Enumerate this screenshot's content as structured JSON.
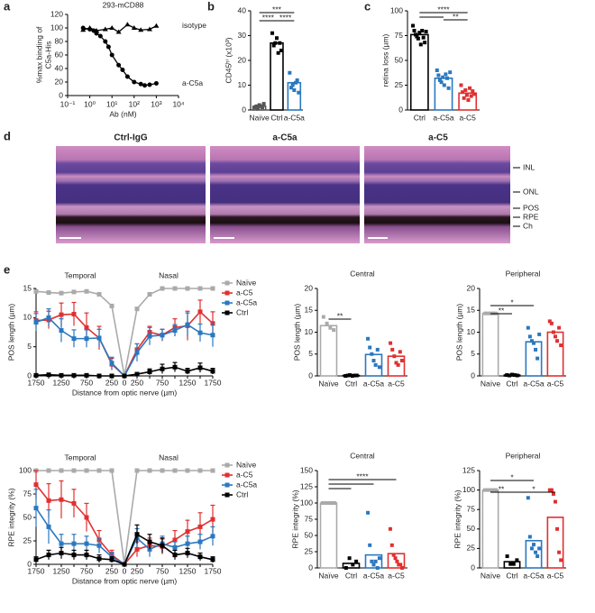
{
  "panels": [
    "a",
    "b",
    "c",
    "d",
    "e"
  ],
  "histology": {
    "titles": [
      "Ctrl-IgG",
      "a-C5a",
      "a-C5"
    ],
    "layers": [
      "INL",
      "ONL",
      "POS",
      "RPE",
      "Ch"
    ]
  },
  "chart_data": [
    {
      "type": "scatter",
      "title": "293-mCD88",
      "xlabel": "Ab (nM)",
      "ylabel": [
        "%max binding of",
        "C5a-His"
      ],
      "xscale": "log",
      "xlim": [
        0.1,
        10000
      ],
      "xticks": [
        {
          "value": 0.1,
          "label": "10⁻¹"
        },
        {
          "value": 1,
          "label": "10⁰"
        },
        {
          "value": 10,
          "label": "10¹"
        },
        {
          "value": 100,
          "label": "10²"
        },
        {
          "value": 1000,
          "label": "10³"
        },
        {
          "value": 10000,
          "label": "10⁴"
        }
      ],
      "ylim": [
        0,
        120
      ],
      "yticks": [
        0,
        20,
        40,
        60,
        80,
        100,
        120
      ],
      "series": [
        {
          "name": "isotype",
          "marker": "triangle",
          "color": "#000000",
          "x": [
            0.5,
            1,
            2,
            5,
            10,
            20,
            50,
            100,
            200,
            500,
            1000
          ],
          "values": [
            97,
            100,
            96,
            98,
            100,
            94,
            105,
            100,
            97,
            98,
            103
          ]
        },
        {
          "name": "a-C5a",
          "marker": "circle",
          "color": "#000000",
          "x": [
            0.5,
            1,
            1.5,
            2,
            3,
            5,
            7,
            10,
            20,
            30,
            50,
            100,
            200,
            300,
            500,
            1000
          ],
          "values": [
            100,
            98,
            96,
            92,
            88,
            80,
            72,
            60,
            45,
            38,
            28,
            20,
            17,
            15,
            16,
            18
          ]
        }
      ]
    },
    {
      "type": "bar",
      "ylabel": "CD45ʰⁱ (x10³)",
      "categories": [
        "Naïve",
        "Ctrl",
        "a-C5a"
      ],
      "colors": [
        "#555555",
        "#000000",
        "#2a78c0"
      ],
      "values": [
        1.5,
        27,
        11
      ],
      "points": [
        [
          1,
          1.5,
          0.5,
          2,
          1.5,
          1,
          2.5
        ],
        [
          31,
          26,
          27,
          29,
          23,
          27,
          24
        ],
        [
          15,
          9,
          10,
          8,
          11,
          12,
          7
        ]
      ],
      "ylim": [
        0,
        40
      ],
      "yticks": [
        0,
        10,
        20,
        30,
        40
      ],
      "significance": [
        {
          "from": "Naïve",
          "to": [
            "a-C5a"
          ],
          "label": "***"
        },
        {
          "from": "Naïve",
          "to": [
            "Ctrl"
          ],
          "label": "****"
        },
        {
          "from": "Ctrl",
          "to": [
            "a-C5a"
          ],
          "label": "****"
        }
      ]
    },
    {
      "type": "bar",
      "ylabel": "retina loss (µm)",
      "categories": [
        "Ctrl",
        "a-C5a",
        "a-C5"
      ],
      "colors": [
        "#000000",
        "#2a78c0",
        "#e03030"
      ],
      "values": [
        76,
        32,
        17
      ],
      "points": [
        [
          85,
          80,
          76,
          74,
          72,
          78,
          66,
          80,
          73,
          68,
          79
        ],
        [
          40,
          35,
          30,
          28,
          33,
          25,
          36,
          32,
          22,
          38
        ],
        [
          25,
          18,
          12,
          20,
          15,
          10,
          22,
          14,
          19,
          16
        ]
      ],
      "ylim": [
        0,
        100
      ],
      "yticks": [
        0,
        25,
        50,
        75,
        100
      ],
      "significance": [
        {
          "from": "Ctrl",
          "to": [
            "a-C5",
            "a-C5a"
          ],
          "label": "****"
        },
        {
          "from": "a-C5a",
          "to": [
            "a-C5"
          ],
          "label": "**"
        }
      ]
    },
    {
      "type": "line",
      "ylabel": "POS length (µm)",
      "xlabel": "Distance from optic nerve (µm)",
      "annotations": [
        "Temporal",
        "Nasal"
      ],
      "categories": [
        "1750",
        null,
        "1250",
        null,
        "750",
        null,
        "250",
        "0",
        "250",
        null,
        "750",
        null,
        "1250",
        null,
        "1750"
      ],
      "ylim": [
        0,
        15
      ],
      "yticks": [
        0,
        5,
        10,
        15
      ],
      "series": [
        {
          "name": "Naïve",
          "color": "#aaaaaa",
          "values": [
            14.5,
            14.3,
            14.2,
            14.4,
            14.5,
            14,
            12,
            0,
            11.5,
            14,
            15,
            15,
            15,
            15,
            15
          ]
        },
        {
          "name": "a-C5",
          "color": "#e03030",
          "values": [
            9.5,
            9.6,
            10.5,
            10.6,
            8.3,
            6.5,
            2,
            0,
            4.5,
            7.5,
            7,
            8.3,
            8.6,
            11,
            9
          ],
          "errors": [
            1.5,
            1.5,
            2,
            2,
            2.5,
            2,
            1,
            0,
            1,
            1,
            1,
            1.5,
            2.5,
            2,
            2
          ]
        },
        {
          "name": "a-C5a",
          "color": "#2a78c0",
          "values": [
            9.2,
            10,
            7.8,
            6.4,
            6.4,
            6.5,
            2.2,
            0,
            4,
            6.8,
            7,
            7.8,
            8.8,
            7.4,
            7
          ],
          "errors": [
            1.5,
            1.5,
            2,
            1.5,
            1.5,
            1.5,
            1,
            0,
            1.5,
            1.5,
            1,
            1,
            2,
            1.5,
            2
          ]
        },
        {
          "name": "Ctrl",
          "color": "#000000",
          "values": [
            0.1,
            0.2,
            0.1,
            0.1,
            0.1,
            0,
            0,
            0,
            0.3,
            0.7,
            1.2,
            1.5,
            0.8,
            1.4,
            0.8
          ],
          "errors": [
            0.1,
            0.2,
            0.1,
            0.1,
            0.1,
            0,
            0,
            0,
            0.2,
            0.5,
            0.8,
            0.8,
            0.5,
            0.8,
            0.5
          ]
        }
      ]
    },
    {
      "type": "bar",
      "title": "Central",
      "ylabel": "POS length (µm)",
      "categories": [
        "Naïve",
        "Ctrl",
        "a-C5a",
        "a-C5"
      ],
      "colors": [
        "#aaaaaa",
        "#000000",
        "#2a78c0",
        "#e03030"
      ],
      "values": [
        11.5,
        0.1,
        4.9,
        4.5
      ],
      "points": [
        [
          13.5,
          12,
          11,
          10.5
        ],
        [
          0,
          0.1,
          0.2,
          0,
          0.1,
          0.1
        ],
        [
          8.5,
          6.5,
          5,
          3.5,
          2.5,
          6,
          2
        ],
        [
          7.5,
          6,
          4.5,
          3,
          2.5,
          5.5,
          3.5
        ]
      ],
      "ylim": [
        0,
        20
      ],
      "yticks": [
        0,
        5,
        10,
        15,
        20
      ],
      "significance": [
        {
          "from": "Naïve",
          "to": [
            "Ctrl"
          ],
          "label": "**"
        }
      ]
    },
    {
      "type": "bar",
      "title": "Peripheral",
      "ylabel": "POS length (µm)",
      "categories": [
        "Naïve",
        "Ctrl",
        "a-C5a",
        "a-C5"
      ],
      "colors": [
        "#aaaaaa",
        "#000000",
        "#2a78c0",
        "#e03030"
      ],
      "values": [
        14.3,
        0.2,
        7.8,
        10
      ],
      "points": [
        [
          14.3,
          14.3,
          14.3,
          14.3,
          14.3
        ],
        [
          0.2,
          0.1,
          0.3,
          0.2,
          0.1
        ],
        [
          11,
          9,
          8,
          7.5,
          6,
          4,
          9.5
        ],
        [
          12.5,
          12,
          10,
          9,
          8,
          11,
          7
        ]
      ],
      "ylim": [
        0,
        20
      ],
      "yticks": [
        0,
        5,
        10,
        15,
        20
      ],
      "significance": [
        {
          "from": "Naïve",
          "to": [
            "a-C5a"
          ],
          "label": "*"
        },
        {
          "from": "Naïve",
          "to": [
            "Ctrl"
          ],
          "label": "**"
        }
      ]
    },
    {
      "type": "line",
      "ylabel": "RPE integrity (%)",
      "xlabel": "Distance from optic nerve (µm)",
      "annotations": [
        "Temporal",
        "Nasal"
      ],
      "categories": [
        "1750",
        null,
        "1250",
        null,
        "750",
        null,
        "250",
        "0",
        "250",
        null,
        "750",
        null,
        "1250",
        null,
        "1750"
      ],
      "ylim": [
        0,
        100
      ],
      "yticks": [
        0,
        25,
        50,
        75,
        100
      ],
      "series": [
        {
          "name": "Naïve",
          "color": "#aaaaaa",
          "values": [
            100,
            100,
            100,
            100,
            100,
            100,
            100,
            0,
            100,
            100,
            100,
            100,
            100,
            100,
            100
          ]
        },
        {
          "name": "a-C5",
          "color": "#e03030",
          "values": [
            85,
            68,
            69,
            65,
            50,
            26,
            10,
            0,
            16,
            20,
            19,
            26,
            35,
            40,
            48
          ],
          "errors": [
            15,
            18,
            20,
            15,
            15,
            10,
            5,
            0,
            8,
            8,
            8,
            10,
            12,
            15,
            15
          ]
        },
        {
          "name": "a-C5a",
          "color": "#2a78c0",
          "values": [
            60,
            40,
            22,
            22,
            22,
            20,
            8,
            0,
            28,
            16,
            22,
            18,
            22,
            24,
            30
          ],
          "errors": [
            20,
            18,
            10,
            10,
            8,
            8,
            5,
            0,
            10,
            8,
            8,
            6,
            8,
            8,
            10
          ]
        },
        {
          "name": "Ctrl",
          "color": "#000000",
          "values": [
            5,
            10,
            12,
            10,
            10,
            6,
            5,
            0,
            32,
            24,
            20,
            10,
            12,
            8,
            5
          ],
          "errors": [
            3,
            5,
            6,
            5,
            5,
            4,
            3,
            0,
            10,
            8,
            8,
            5,
            5,
            4,
            3
          ]
        }
      ]
    },
    {
      "type": "bar",
      "title": "Central",
      "ylabel": "RPE integrity (%)",
      "categories": [
        "Naïve",
        "Ctrl",
        "a-C5a",
        "a-C5"
      ],
      "colors": [
        "#aaaaaa",
        "#000000",
        "#2a78c0",
        "#e03030"
      ],
      "values": [
        100,
        7,
        20,
        22
      ],
      "points": [
        [
          100,
          100,
          100,
          100,
          100,
          100,
          100,
          100
        ],
        [
          0,
          15,
          5,
          10
        ],
        [
          85,
          35,
          10,
          5,
          10,
          0,
          15
        ],
        [
          60,
          35,
          20,
          15,
          10,
          5,
          5,
          0
        ]
      ],
      "ylim": [
        0,
        150
      ],
      "yticks": [
        0,
        25,
        50,
        75,
        100,
        125,
        150
      ],
      "significance": [
        {
          "from": "Naïve",
          "to": [
            "a-C5",
            "a-C5a",
            "Ctrl"
          ],
          "label": "****"
        }
      ]
    },
    {
      "type": "bar",
      "title": "Peripheral",
      "ylabel": "RPE integrity (%)",
      "categories": [
        "Naïve",
        "Ctrl",
        "a-C5a",
        "a-C5"
      ],
      "colors": [
        "#aaaaaa",
        "#000000",
        "#2a78c0",
        "#e03030"
      ],
      "values": [
        100,
        8,
        35,
        65
      ],
      "points": [
        [
          100,
          100,
          100,
          100,
          100,
          100
        ],
        [
          15,
          5,
          5,
          10
        ],
        [
          90,
          40,
          25,
          30,
          20,
          15,
          25
        ],
        [
          100,
          100,
          95,
          85,
          50,
          20,
          10
        ]
      ],
      "ylim": [
        0,
        125
      ],
      "yticks": [
        0,
        25,
        50,
        75,
        100,
        125
      ],
      "significance": [
        {
          "from": "Naïve",
          "to": [
            "a-C5a"
          ],
          "label": "*"
        },
        {
          "from": "Naïve",
          "to": [
            "Ctrl"
          ],
          "label": "**"
        },
        {
          "from": "Ctrl",
          "to": [
            "a-C5"
          ],
          "label": "*"
        }
      ]
    }
  ]
}
